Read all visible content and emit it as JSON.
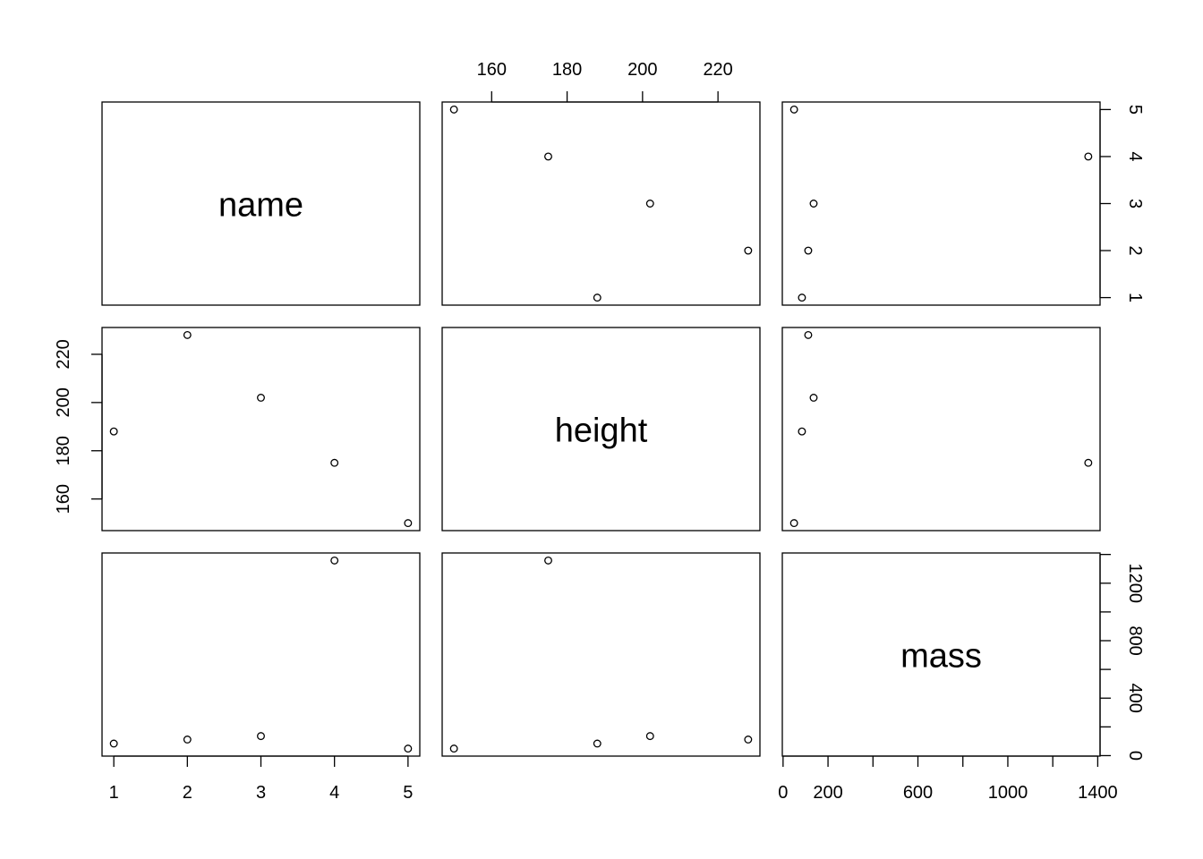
{
  "chart_data": {
    "type": "scatter",
    "subtype": "pairs",
    "variables": [
      "name",
      "height",
      "mass"
    ],
    "data": {
      "name": [
        1,
        2,
        3,
        4,
        5
      ],
      "height": [
        188,
        228,
        202,
        175,
        150
      ],
      "mass": [
        84,
        112,
        136,
        1358,
        49
      ]
    },
    "ranges": {
      "name": [
        1,
        5
      ],
      "height": [
        150,
        228
      ],
      "mass": [
        49,
        1358
      ]
    },
    "axes": {
      "name": {
        "ticks": [
          1,
          2,
          3,
          4,
          5
        ],
        "labels": [
          "1",
          "2",
          "3",
          "4",
          "5"
        ]
      },
      "height": {
        "ticks": [
          160,
          180,
          200,
          220
        ],
        "labels": [
          "160",
          "180",
          "200",
          "220"
        ]
      },
      "mass_bottom": {
        "ticks": [
          0,
          200,
          400,
          600,
          800,
          1000,
          1200,
          1400
        ],
        "labels": [
          "0",
          "200",
          "",
          "600",
          "",
          "1000",
          "",
          "1400"
        ]
      },
      "mass_right": {
        "ticks": [
          0,
          200,
          400,
          600,
          800,
          1000,
          1200,
          1400
        ],
        "labels": [
          "0",
          "",
          "400",
          "",
          "800",
          "",
          "1200",
          ""
        ]
      }
    },
    "grid": false,
    "marker": "open-circle",
    "color": "#000000"
  }
}
